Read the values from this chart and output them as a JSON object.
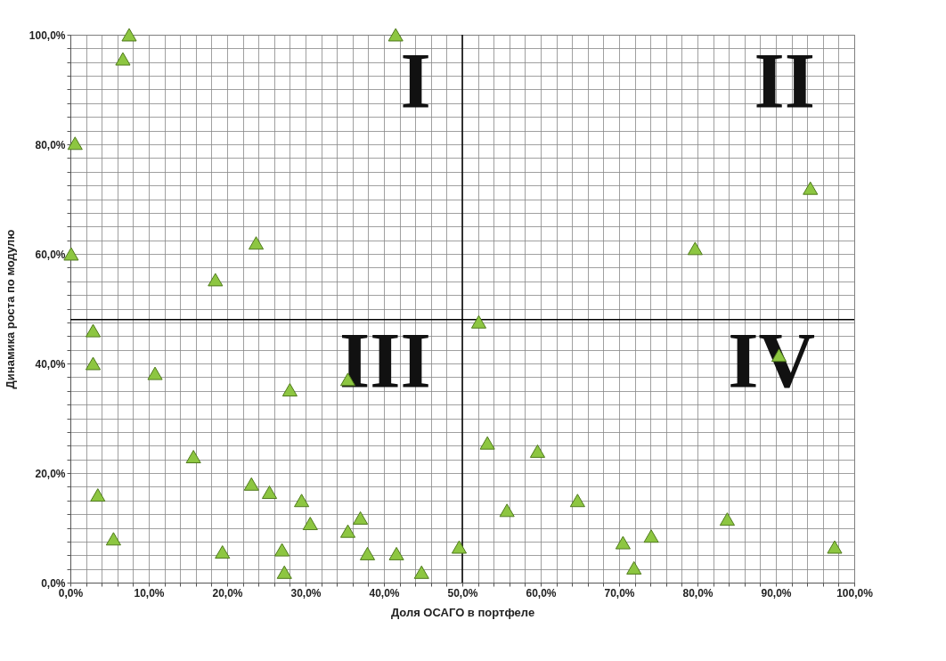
{
  "chart_data": {
    "type": "scatter",
    "xlabel": "Доля ОСАГО в портфеле",
    "ylabel": "Динамика роста по модулю",
    "marker": "triangle",
    "grid": true,
    "x": [
      7.5,
      6.7,
      41.5,
      0.6,
      0.1,
      23.7,
      18.5,
      79.7,
      94.4,
      2.9,
      2.9,
      10.8,
      28,
      35.4,
      52.1,
      90.4,
      15.7,
      3.5,
      5.5,
      19.4,
      23.1,
      25.4,
      29.5,
      30.6,
      27,
      27.3,
      35.4,
      37,
      37.9,
      41.6,
      44.8,
      49.6,
      53.2,
      55.7,
      59.6,
      64.7,
      70.5,
      71.9,
      74.1,
      83.8,
      97.5
    ],
    "series": [
      {
        "color": "#8dc641",
        "values": [
          100,
          95.6,
          100,
          80.2,
          60,
          62,
          55.3,
          61,
          72,
          46,
          40,
          38.2,
          35.2,
          37.1,
          47.6,
          41.5,
          23,
          16,
          8,
          5.6,
          18,
          16.5,
          15,
          10.8,
          6,
          1.9,
          9.4,
          11.8,
          5.3,
          5.3,
          1.9,
          6.5,
          25.5,
          13.2,
          24,
          15,
          7.3,
          2.7,
          8.5,
          11.6,
          6.5
        ]
      }
    ],
    "xlim": [
      0,
      100
    ],
    "ylim": [
      0,
      100
    ],
    "xticks": [
      {
        "value": 0,
        "label": "0,0%"
      },
      {
        "value": 2,
        "label": null
      },
      {
        "value": 4,
        "label": null
      },
      {
        "value": 6,
        "label": null
      },
      {
        "value": 8,
        "label": null
      },
      {
        "value": 10,
        "label": "10,0%"
      },
      {
        "value": 12,
        "label": null
      },
      {
        "value": 14,
        "label": null
      },
      {
        "value": 16,
        "label": null
      },
      {
        "value": 18,
        "label": null
      },
      {
        "value": 20,
        "label": "20,0%"
      },
      {
        "value": 22,
        "label": null
      },
      {
        "value": 24,
        "label": null
      },
      {
        "value": 26,
        "label": null
      },
      {
        "value": 28,
        "label": null
      },
      {
        "value": 30,
        "label": "30,0%"
      },
      {
        "value": 32,
        "label": null
      },
      {
        "value": 34,
        "label": null
      },
      {
        "value": 36,
        "label": null
      },
      {
        "value": 38,
        "label": null
      },
      {
        "value": 40,
        "label": "40,0%"
      },
      {
        "value": 42,
        "label": null
      },
      {
        "value": 44,
        "label": null
      },
      {
        "value": 46,
        "label": null
      },
      {
        "value": 48,
        "label": null
      },
      {
        "value": 50,
        "label": "50,0%"
      },
      {
        "value": 52,
        "label": null
      },
      {
        "value": 54,
        "label": null
      },
      {
        "value": 56,
        "label": null
      },
      {
        "value": 58,
        "label": null
      },
      {
        "value": 60,
        "label": "60,0%"
      },
      {
        "value": 62,
        "label": null
      },
      {
        "value": 64,
        "label": null
      },
      {
        "value": 66,
        "label": null
      },
      {
        "value": 68,
        "label": null
      },
      {
        "value": 70,
        "label": "70,0%"
      },
      {
        "value": 72,
        "label": null
      },
      {
        "value": 74,
        "label": null
      },
      {
        "value": 76,
        "label": null
      },
      {
        "value": 78,
        "label": null
      },
      {
        "value": 80,
        "label": "80,0%"
      },
      {
        "value": 82,
        "label": null
      },
      {
        "value": 84,
        "label": null
      },
      {
        "value": 86,
        "label": null
      },
      {
        "value": 88,
        "label": null
      },
      {
        "value": 90,
        "label": "90,0%"
      },
      {
        "value": 92,
        "label": null
      },
      {
        "value": 94,
        "label": null
      },
      {
        "value": 96,
        "label": null
      },
      {
        "value": 98,
        "label": null
      },
      {
        "value": 100,
        "label": "100,0%"
      }
    ],
    "yticks": [
      {
        "value": 0,
        "label": "0,0%"
      },
      {
        "value": 2.5,
        "label": null
      },
      {
        "value": 5,
        "label": null
      },
      {
        "value": 7.5,
        "label": null
      },
      {
        "value": 10,
        "label": null
      },
      {
        "value": 12.5,
        "label": null
      },
      {
        "value": 15,
        "label": null
      },
      {
        "value": 17.5,
        "label": null
      },
      {
        "value": 20,
        "label": "20,0%"
      },
      {
        "value": 22.5,
        "label": null
      },
      {
        "value": 25,
        "label": null
      },
      {
        "value": 27.5,
        "label": null
      },
      {
        "value": 30,
        "label": null
      },
      {
        "value": 32.5,
        "label": null
      },
      {
        "value": 35,
        "label": null
      },
      {
        "value": 37.5,
        "label": null
      },
      {
        "value": 40,
        "label": "40,0%"
      },
      {
        "value": 42.5,
        "label": null
      },
      {
        "value": 45,
        "label": null
      },
      {
        "value": 47.5,
        "label": null
      },
      {
        "value": 50,
        "label": null
      },
      {
        "value": 52.5,
        "label": null
      },
      {
        "value": 55,
        "label": null
      },
      {
        "value": 57.5,
        "label": null
      },
      {
        "value": 60,
        "label": "60,0%"
      },
      {
        "value": 62.5,
        "label": null
      },
      {
        "value": 65,
        "label": null
      },
      {
        "value": 67.5,
        "label": null
      },
      {
        "value": 70,
        "label": null
      },
      {
        "value": 72.5,
        "label": null
      },
      {
        "value": 75,
        "label": null
      },
      {
        "value": 77.5,
        "label": null
      },
      {
        "value": 80,
        "label": "80,0%"
      },
      {
        "value": 82.5,
        "label": null
      },
      {
        "value": 85,
        "label": null
      },
      {
        "value": 87.5,
        "label": null
      },
      {
        "value": 90,
        "label": null
      },
      {
        "value": 92.5,
        "label": null
      },
      {
        "value": 95,
        "label": null
      },
      {
        "value": 97.5,
        "label": null
      },
      {
        "value": 100,
        "label": "100,0%"
      }
    ],
    "ref_lines": [
      {
        "axis": "x",
        "value": 50,
        "color": "#000000"
      },
      {
        "axis": "y",
        "value": 48,
        "color": "#000000"
      }
    ],
    "annotations": [
      "I",
      "II",
      "III",
      "IV"
    ]
  }
}
